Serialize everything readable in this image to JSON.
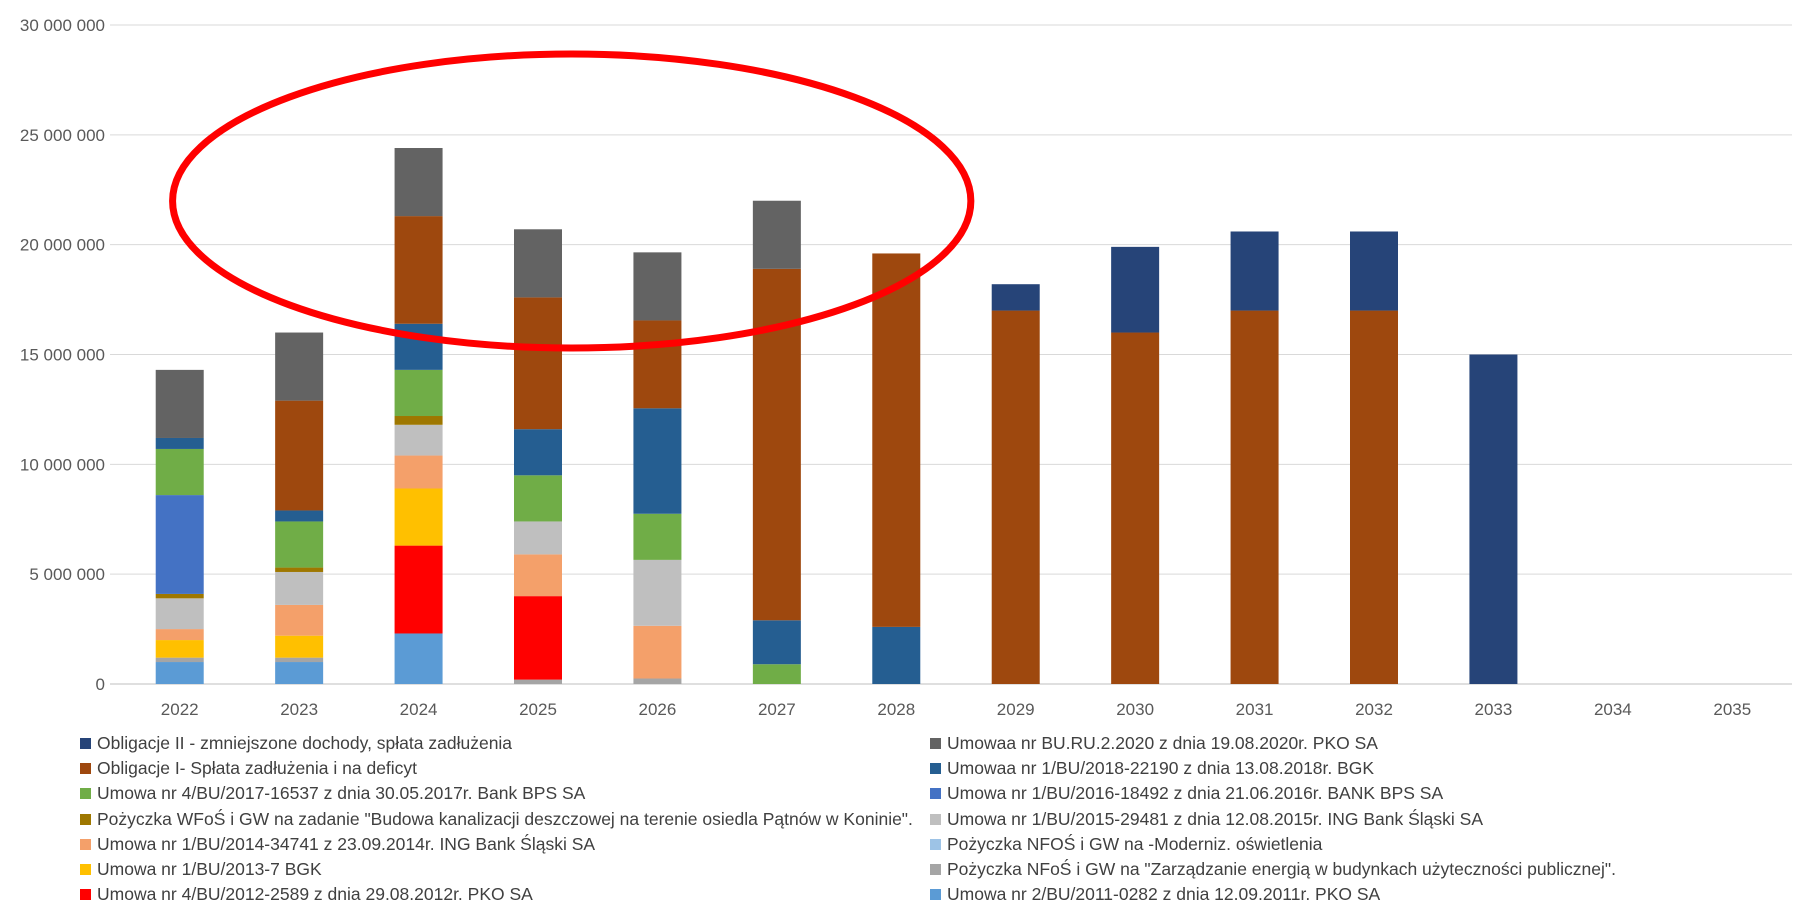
{
  "chart_data": {
    "type": "bar",
    "stacked": true,
    "categories": [
      "2022",
      "2023",
      "2024",
      "2025",
      "2026",
      "2027",
      "2028",
      "2029",
      "2030",
      "2031",
      "2032",
      "2033",
      "2034",
      "2035"
    ],
    "yticks": [
      "0",
      "5 000 000",
      "10 000 000",
      "15 000 000",
      "20 000 000",
      "25 000 000",
      "30 000 000"
    ],
    "ylim": [
      0,
      30000000
    ],
    "grid": true,
    "legend_position": "bottom",
    "annotation": {
      "shape": "ellipse",
      "color": "#ff0000",
      "around": [
        "2024",
        "2025",
        "2026",
        "2027"
      ]
    },
    "series": [
      {
        "name": "Umowa nr 2/BU/2011-0282 z dnia 12.09.2011r. PKO SA",
        "color": "#5b9bd5",
        "values": [
          1000000,
          1000000,
          2300000,
          0,
          0,
          0,
          0,
          0,
          0,
          0,
          0,
          0,
          0,
          0
        ]
      },
      {
        "name": "Pożyczka NFoŚ i GW na \"Zarządzanie energią w budynkach użyteczności publicznej\".",
        "color": "#a5a5a5",
        "values": [
          200000,
          200000,
          0,
          200000,
          250000,
          0,
          0,
          0,
          0,
          0,
          0,
          0,
          0,
          0
        ]
      },
      {
        "name": "Umowa nr 4/BU/2012-2589 z dnia 29.08.2012r. PKO SA",
        "color": "#ff0000",
        "values": [
          0,
          0,
          4000000,
          3800000,
          0,
          0,
          0,
          0,
          0,
          0,
          0,
          0,
          0,
          0
        ]
      },
      {
        "name": "Pożyczka NFOŚ i GW na -Moderniz. oświetlenia",
        "color": "#9dc3e6",
        "values": [
          0,
          0,
          0,
          0,
          0,
          0,
          0,
          0,
          0,
          0,
          0,
          0,
          0,
          0
        ]
      },
      {
        "name": "Umowa nr 1/BU/2013-7  BGK",
        "color": "#ffc000",
        "values": [
          800000,
          1000000,
          2600000,
          0,
          0,
          0,
          0,
          0,
          0,
          0,
          0,
          0,
          0,
          0
        ]
      },
      {
        "name": "Umowa nr 1/BU/2014-34741 z 23.09.2014r. ING Bank Śląski SA",
        "color": "#f4a06a",
        "values": [
          500000,
          1400000,
          1500000,
          1900000,
          2400000,
          0,
          0,
          0,
          0,
          0,
          0,
          0,
          0,
          0
        ]
      },
      {
        "name": "Umowa nr 1/BU/2015-29481 z dnia 12.08.2015r. ING Bank Śląski SA",
        "color": "#bfbfbf",
        "values": [
          1400000,
          1500000,
          1400000,
          1500000,
          3000000,
          0,
          0,
          0,
          0,
          0,
          0,
          0,
          0,
          0
        ]
      },
      {
        "name": "Pożyczka WFoŚ i GW na zadanie \"Budowa kanalizacji deszczowej na terenie osiedla Pątnów w Koninie\".",
        "color": "#9e7700",
        "values": [
          200000,
          200000,
          400000,
          0,
          0,
          0,
          0,
          0,
          0,
          0,
          0,
          0,
          0,
          0
        ]
      },
      {
        "name": "Umowa nr 1/BU/2016-18492 z dnia 21.06.2016r. BANK BPS  SA",
        "color": "#4472c4",
        "values": [
          4500000,
          0,
          0,
          0,
          0,
          0,
          0,
          0,
          0,
          0,
          0,
          0,
          0,
          0
        ]
      },
      {
        "name": "Umowa nr 4/BU/2017-16537 z dnia 30.05.2017r. Bank BPS SA",
        "color": "#70ad47",
        "values": [
          2100000,
          2100000,
          2100000,
          2100000,
          2100000,
          900000,
          0,
          0,
          0,
          0,
          0,
          0,
          0,
          0
        ]
      },
      {
        "name": "Umowaa nr 1/BU/2018-22190 z dnia 13.08.2018r. BGK",
        "color": "#255e91",
        "values": [
          500000,
          500000,
          2100000,
          2100000,
          4800000,
          2000000,
          2600000,
          0,
          0,
          0,
          0,
          0,
          0,
          0
        ]
      },
      {
        "name": "Obligacje I- Spłata zadłużenia i na deficyt",
        "color": "#9e480e",
        "values": [
          0,
          5000000,
          4900000,
          6000000,
          4000000,
          16000000,
          17000000,
          17000000,
          16000000,
          17000000,
          17000000,
          0,
          0,
          0
        ]
      },
      {
        "name": "Umowaa nr BU.RU.2.2020 z dnia 19.08.2020r. PKO SA",
        "color": "#636363",
        "values": [
          3100000,
          3100000,
          3100000,
          3100000,
          3100000,
          3100000,
          0,
          0,
          0,
          0,
          0,
          0,
          0,
          0
        ]
      },
      {
        "name": "Obligacje II - zmniejszone dochody, spłata zadłużenia",
        "color": "#264478",
        "values": [
          0,
          0,
          0,
          0,
          0,
          0,
          0,
          1200000,
          3900000,
          3600000,
          3600000,
          15000000,
          0,
          0
        ]
      }
    ]
  },
  "legend": {
    "left": [
      {
        "label": "Obligacje II - zmniejszone dochody, spłata zadłużenia",
        "color": "#264478"
      },
      {
        "label": "Obligacje I- Spłata zadłużenia i na deficyt",
        "color": "#9e480e"
      },
      {
        "label": "Umowa nr 4/BU/2017-16537 z dnia 30.05.2017r. Bank BPS SA",
        "color": "#70ad47"
      },
      {
        "label": "Pożyczka WFoŚ i GW na zadanie \"Budowa kanalizacji deszczowej na terenie osiedla Pątnów w Koninie\".",
        "color": "#9e7700"
      },
      {
        "label": "Umowa nr 1/BU/2014-34741 z 23.09.2014r. ING Bank Śląski SA",
        "color": "#f4a06a"
      },
      {
        "label": "Umowa nr 1/BU/2013-7  BGK",
        "color": "#ffc000"
      },
      {
        "label": "Umowa nr 4/BU/2012-2589 z dnia 29.08.2012r. PKO SA",
        "color": "#ff0000"
      }
    ],
    "right": [
      {
        "label": "Umowaa nr BU.RU.2.2020 z dnia 19.08.2020r. PKO SA",
        "color": "#636363"
      },
      {
        "label": "Umowaa nr 1/BU/2018-22190 z dnia 13.08.2018r. BGK",
        "color": "#255e91"
      },
      {
        "label": "Umowa nr 1/BU/2016-18492 z dnia 21.06.2016r. BANK BPS  SA",
        "color": "#4472c4"
      },
      {
        "label": "Umowa nr 1/BU/2015-29481 z dnia 12.08.2015r. ING Bank Śląski SA",
        "color": "#bfbfbf"
      },
      {
        "label": "Pożyczka NFOŚ i GW na -Moderniz. oświetlenia",
        "color": "#9dc3e6"
      },
      {
        "label": "Pożyczka NFoŚ i GW na \"Zarządzanie energią w budynkach użyteczności publicznej\".",
        "color": "#a5a5a5"
      },
      {
        "label": "Umowa nr 2/BU/2011-0282 z dnia 12.09.2011r. PKO SA",
        "color": "#5b9bd5"
      }
    ]
  }
}
